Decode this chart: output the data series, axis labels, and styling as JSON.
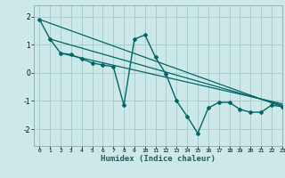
{
  "xlabel": "Humidex (Indice chaleur)",
  "bg_color": "#cce8e8",
  "grid_color": "#aacccc",
  "line_color": "#006666",
  "xlim": [
    -0.5,
    23
  ],
  "ylim": [
    -2.6,
    2.4
  ],
  "yticks": [
    -2,
    -1,
    0,
    1,
    2
  ],
  "xticks": [
    0,
    1,
    2,
    3,
    4,
    5,
    6,
    7,
    8,
    9,
    10,
    11,
    12,
    13,
    14,
    15,
    16,
    17,
    18,
    19,
    20,
    21,
    22,
    23
  ],
  "series1_x": [
    0,
    1,
    2,
    3,
    4,
    5,
    6,
    7,
    8,
    9,
    10,
    11,
    12,
    13,
    14,
    15,
    16,
    17,
    18,
    19,
    20,
    21,
    22,
    23
  ],
  "series1_y": [
    1.9,
    1.2,
    0.7,
    0.65,
    0.5,
    0.35,
    0.28,
    0.22,
    -1.15,
    1.2,
    1.35,
    0.55,
    -0.05,
    -1.0,
    -1.55,
    -2.15,
    -1.25,
    -1.05,
    -1.05,
    -1.3,
    -1.4,
    -1.4,
    -1.15,
    -1.2
  ],
  "series2_x": [
    0,
    23
  ],
  "series2_y": [
    1.9,
    -1.2
  ],
  "series3_x": [
    1,
    23
  ],
  "series3_y": [
    1.2,
    -1.15
  ],
  "series4_x": [
    2,
    23
  ],
  "series4_y": [
    0.7,
    -1.1
  ]
}
